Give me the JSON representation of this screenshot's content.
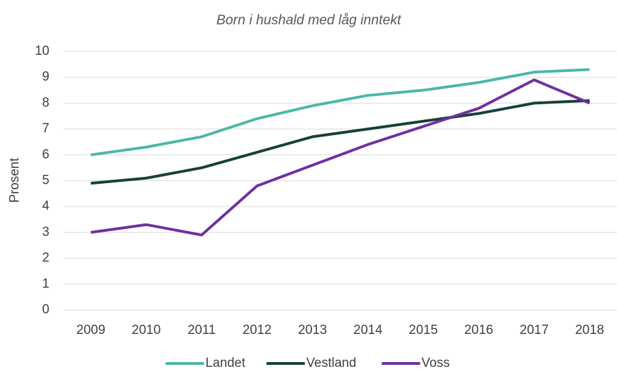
{
  "chart_data": {
    "type": "line",
    "title": "Born i hushald med låg inntekt",
    "ylabel": "Prosent",
    "categories": [
      "2009",
      "2010",
      "2011",
      "2012",
      "2013",
      "2014",
      "2015",
      "2016",
      "2017",
      "2018"
    ],
    "series": [
      {
        "name": "Landet",
        "color": "#4bb8a6",
        "values": [
          6.0,
          6.3,
          6.7,
          7.4,
          7.9,
          8.3,
          8.5,
          8.8,
          9.2,
          9.3
        ]
      },
      {
        "name": "Vestland",
        "color": "#17403a",
        "values": [
          4.9,
          5.1,
          5.5,
          6.1,
          6.7,
          7.0,
          7.3,
          7.6,
          8.0,
          8.1
        ]
      },
      {
        "name": "Voss",
        "color": "#7030a0",
        "values": [
          3.0,
          3.3,
          2.9,
          4.8,
          5.6,
          6.4,
          7.1,
          7.8,
          8.9,
          8.0
        ]
      }
    ],
    "ylim": [
      0,
      10
    ],
    "yticks": [
      0,
      1,
      2,
      3,
      4,
      5,
      6,
      7,
      8,
      9,
      10
    ],
    "grid": true,
    "legend": "bottom"
  }
}
